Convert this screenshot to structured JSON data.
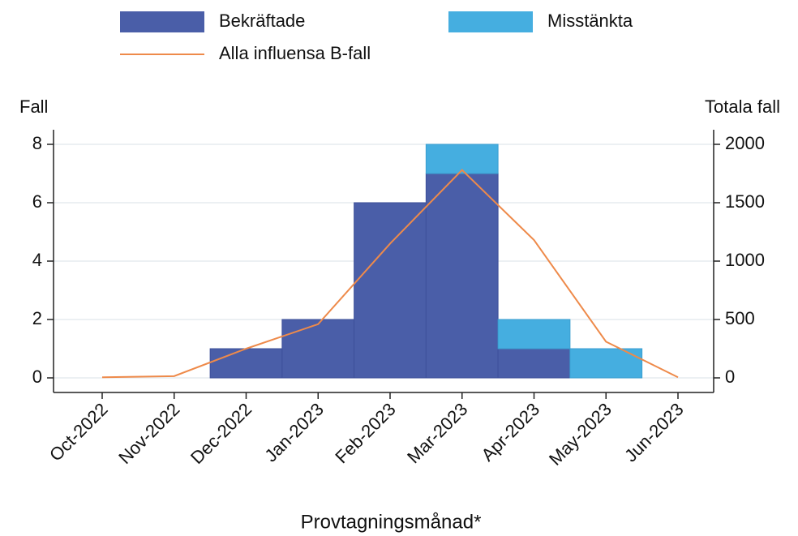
{
  "chart_data": {
    "type": "bar",
    "x_label": "Provtagningsmånad*",
    "y_label": "Fall",
    "y2_label": "Totala fall",
    "categories": [
      "Oct-2022",
      "Nov-2022",
      "Dec-2022",
      "Jan-2023",
      "Feb-2023",
      "Mar-2023",
      "Apr-2023",
      "May-2023",
      "Jun-2023"
    ],
    "series": [
      {
        "name": "Bekräftade",
        "type": "bar",
        "color": "#4a5ea8",
        "values": [
          0,
          0,
          1,
          2,
          6,
          7,
          1,
          0,
          0
        ]
      },
      {
        "name": "Misstänkta",
        "type": "bar",
        "color": "#45aee0",
        "values": [
          0,
          0,
          0,
          0,
          0,
          1,
          1,
          1,
          0
        ]
      },
      {
        "name": "Alla influensa B-fall",
        "type": "line",
        "axis": "y2",
        "color": "#ee8a4a",
        "values": [
          5,
          15,
          250,
          460,
          1150,
          1780,
          1180,
          310,
          5
        ]
      }
    ],
    "stacked": true,
    "ylim": [
      -0.5,
      8.5
    ],
    "yticks": [
      0,
      2,
      4,
      6,
      8
    ],
    "y2lim": [
      -125,
      2125
    ],
    "y2ticks": [
      0,
      500,
      1000,
      1500,
      2000
    ],
    "grid": true
  }
}
